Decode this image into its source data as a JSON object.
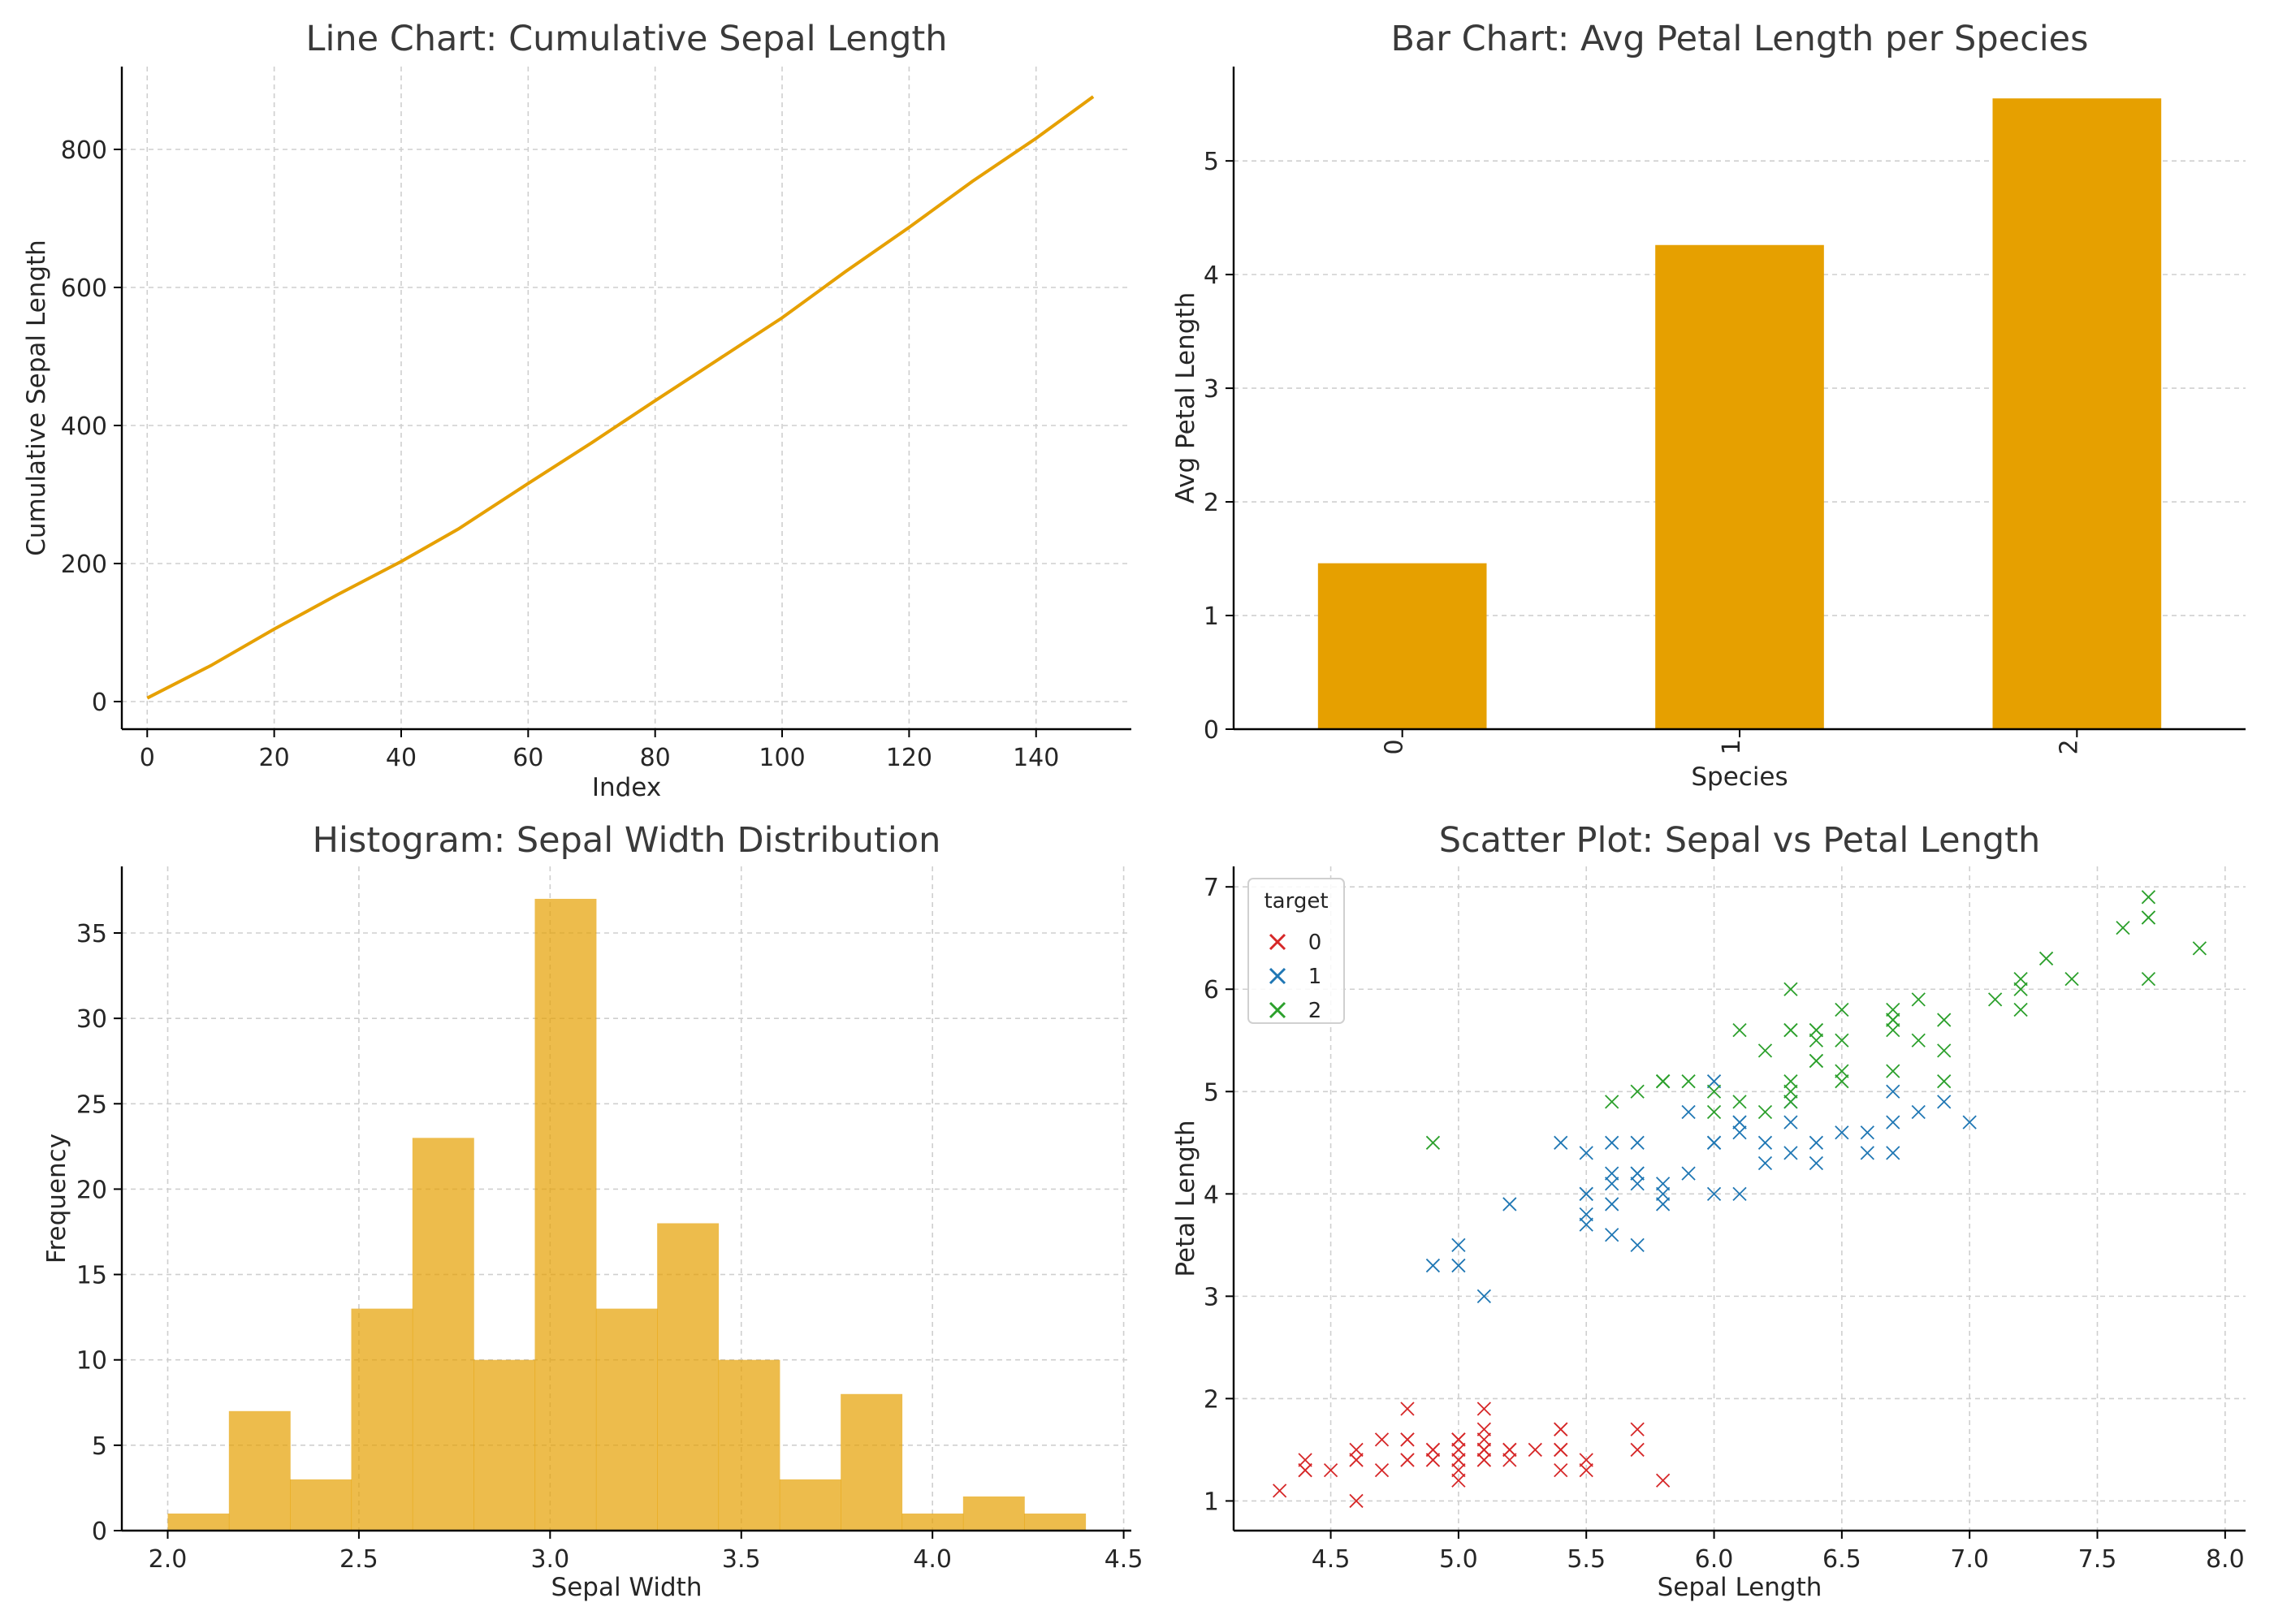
{
  "chart_data": [
    {
      "type": "line",
      "title": "Line Chart: Cumulative Sepal Length",
      "xlabel": "Index",
      "ylabel": "Cumulative Sepal Length",
      "xlim": [
        -4,
        155
      ],
      "ylim": [
        -40,
        920
      ],
      "xticks": [
        0,
        20,
        40,
        60,
        80,
        100,
        120,
        140
      ],
      "yticks": [
        0,
        200,
        400,
        600,
        800
      ],
      "grid": true,
      "color": "#E6A000",
      "series": [
        {
          "x": [
            0,
            10,
            20,
            30,
            40,
            49,
            60,
            70,
            80,
            90,
            100,
            110,
            120,
            130,
            140,
            149
          ],
          "values": [
            5.1,
            52,
            105,
            155,
            203,
            250,
            316,
            375,
            436,
            496,
            556,
            623,
            687,
            754,
            816,
            876.5
          ]
        }
      ]
    },
    {
      "type": "bar",
      "title": "Bar Chart: Avg Petal Length per Species",
      "xlabel": "Species",
      "ylabel": "Avg Petal Length",
      "categories": [
        "0",
        "1",
        "2"
      ],
      "values": [
        1.46,
        4.26,
        5.55
      ],
      "ylim": [
        0,
        5.83
      ],
      "yticks": [
        0,
        1,
        2,
        3,
        4,
        5
      ],
      "grid": true,
      "color": "#E6A000"
    },
    {
      "type": "bar",
      "title": "Histogram: Sepal Width Distribution",
      "xlabel": "Sepal Width",
      "ylabel": "Frequency",
      "bin_edges": [
        2.0,
        2.16,
        2.32,
        2.48,
        2.64,
        2.8,
        2.96,
        3.12,
        3.28,
        3.44,
        3.6,
        3.76,
        3.92,
        4.08,
        4.24,
        4.4
      ],
      "values": [
        1,
        7,
        3,
        13,
        23,
        10,
        37,
        13,
        18,
        10,
        3,
        8,
        1,
        2,
        1
      ],
      "xlim": [
        1.88,
        4.52
      ],
      "ylim": [
        0,
        38.9
      ],
      "xticks": [
        2.0,
        2.5,
        3.0,
        3.5,
        4.0,
        4.5
      ],
      "yticks": [
        0,
        5,
        10,
        15,
        20,
        25,
        30,
        35
      ],
      "grid": true,
      "color": "#E6A000"
    },
    {
      "type": "scatter",
      "title": "Scatter Plot: Sepal vs Petal Length",
      "xlabel": "Sepal Length",
      "ylabel": "Petal Length",
      "xlim": [
        4.12,
        8.08
      ],
      "ylim": [
        0.71,
        7.2
      ],
      "xticks": [
        4.5,
        5.0,
        5.5,
        6.0,
        6.5,
        7.0,
        7.5,
        8.0
      ],
      "yticks": [
        1,
        2,
        3,
        4,
        5,
        6,
        7
      ],
      "grid": true,
      "legend": {
        "title": "target",
        "position": "top-left"
      },
      "series": [
        {
          "name": "0",
          "color": "#d62728",
          "points": [
            [
              5.1,
              1.4
            ],
            [
              4.9,
              1.4
            ],
            [
              4.7,
              1.3
            ],
            [
              4.6,
              1.5
            ],
            [
              5.0,
              1.4
            ],
            [
              5.4,
              1.7
            ],
            [
              4.6,
              1.4
            ],
            [
              5.0,
              1.5
            ],
            [
              4.4,
              1.4
            ],
            [
              4.9,
              1.5
            ],
            [
              5.4,
              1.5
            ],
            [
              4.8,
              1.6
            ],
            [
              4.8,
              1.4
            ],
            [
              4.3,
              1.1
            ],
            [
              5.8,
              1.2
            ],
            [
              5.7,
              1.5
            ],
            [
              5.4,
              1.3
            ],
            [
              5.1,
              1.4
            ],
            [
              5.7,
              1.7
            ],
            [
              5.1,
              1.5
            ],
            [
              5.4,
              1.7
            ],
            [
              5.1,
              1.5
            ],
            [
              4.6,
              1.0
            ],
            [
              5.1,
              1.7
            ],
            [
              4.8,
              1.9
            ],
            [
              5.0,
              1.6
            ],
            [
              5.0,
              1.6
            ],
            [
              5.2,
              1.5
            ],
            [
              5.2,
              1.4
            ],
            [
              4.7,
              1.6
            ],
            [
              4.8,
              1.6
            ],
            [
              5.4,
              1.5
            ],
            [
              5.2,
              1.5
            ],
            [
              5.5,
              1.4
            ],
            [
              4.9,
              1.5
            ],
            [
              5.0,
              1.2
            ],
            [
              5.5,
              1.3
            ],
            [
              4.9,
              1.4
            ],
            [
              4.4,
              1.3
            ],
            [
              5.1,
              1.5
            ],
            [
              5.0,
              1.3
            ],
            [
              4.5,
              1.3
            ],
            [
              4.4,
              1.3
            ],
            [
              5.0,
              1.6
            ],
            [
              5.1,
              1.9
            ],
            [
              4.8,
              1.4
            ],
            [
              5.1,
              1.6
            ],
            [
              4.6,
              1.4
            ],
            [
              5.3,
              1.5
            ],
            [
              5.0,
              1.4
            ]
          ]
        },
        {
          "name": "1",
          "color": "#1f77b4",
          "points": [
            [
              7.0,
              4.7
            ],
            [
              6.4,
              4.5
            ],
            [
              6.9,
              4.9
            ],
            [
              5.5,
              4.0
            ],
            [
              6.5,
              4.6
            ],
            [
              5.7,
              4.5
            ],
            [
              6.3,
              4.7
            ],
            [
              4.9,
              3.3
            ],
            [
              6.6,
              4.6
            ],
            [
              5.2,
              3.9
            ],
            [
              5.0,
              3.5
            ],
            [
              5.9,
              4.2
            ],
            [
              6.0,
              4.0
            ],
            [
              6.1,
              4.7
            ],
            [
              5.6,
              3.6
            ],
            [
              6.7,
              4.4
            ],
            [
              5.6,
              4.5
            ],
            [
              5.8,
              4.1
            ],
            [
              6.2,
              4.5
            ],
            [
              5.6,
              3.9
            ],
            [
              5.9,
              4.8
            ],
            [
              6.1,
              4.0
            ],
            [
              6.3,
              4.9
            ],
            [
              6.1,
              4.7
            ],
            [
              6.4,
              4.3
            ],
            [
              6.6,
              4.4
            ],
            [
              6.8,
              4.8
            ],
            [
              6.7,
              5.0
            ],
            [
              6.0,
              4.5
            ],
            [
              5.7,
              3.5
            ],
            [
              5.5,
              3.8
            ],
            [
              5.5,
              3.7
            ],
            [
              5.8,
              3.9
            ],
            [
              6.0,
              5.1
            ],
            [
              5.4,
              4.5
            ],
            [
              6.0,
              4.5
            ],
            [
              6.7,
              4.7
            ],
            [
              6.3,
              4.4
            ],
            [
              5.6,
              4.1
            ],
            [
              5.5,
              4.0
            ],
            [
              5.5,
              4.4
            ],
            [
              6.1,
              4.6
            ],
            [
              5.8,
              4.0
            ],
            [
              5.0,
              3.3
            ],
            [
              5.6,
              4.2
            ],
            [
              5.7,
              4.2
            ],
            [
              5.7,
              4.2
            ],
            [
              6.2,
              4.3
            ],
            [
              5.1,
              3.0
            ],
            [
              5.7,
              4.1
            ]
          ]
        },
        {
          "name": "2",
          "color": "#2ca02c",
          "points": [
            [
              6.3,
              6.0
            ],
            [
              5.8,
              5.1
            ],
            [
              7.1,
              5.9
            ],
            [
              6.3,
              5.6
            ],
            [
              6.5,
              5.8
            ],
            [
              7.6,
              6.6
            ],
            [
              4.9,
              4.5
            ],
            [
              7.3,
              6.3
            ],
            [
              6.7,
              5.8
            ],
            [
              7.2,
              6.1
            ],
            [
              6.5,
              5.1
            ],
            [
              6.4,
              5.3
            ],
            [
              6.8,
              5.5
            ],
            [
              5.7,
              5.0
            ],
            [
              5.8,
              5.1
            ],
            [
              6.4,
              5.3
            ],
            [
              6.5,
              5.5
            ],
            [
              7.7,
              6.7
            ],
            [
              7.7,
              6.9
            ],
            [
              6.0,
              5.0
            ],
            [
              6.9,
              5.7
            ],
            [
              5.6,
              4.9
            ],
            [
              7.7,
              6.7
            ],
            [
              6.3,
              4.9
            ],
            [
              6.7,
              5.7
            ],
            [
              7.2,
              6.0
            ],
            [
              6.2,
              4.8
            ],
            [
              6.1,
              4.9
            ],
            [
              6.4,
              5.6
            ],
            [
              7.2,
              5.8
            ],
            [
              7.4,
              6.1
            ],
            [
              7.9,
              6.4
            ],
            [
              6.4,
              5.6
            ],
            [
              6.3,
              5.1
            ],
            [
              6.1,
              5.6
            ],
            [
              7.7,
              6.1
            ],
            [
              6.3,
              5.6
            ],
            [
              6.4,
              5.5
            ],
            [
              6.0,
              4.8
            ],
            [
              6.9,
              5.4
            ],
            [
              6.7,
              5.6
            ],
            [
              6.9,
              5.1
            ],
            [
              5.8,
              5.1
            ],
            [
              6.8,
              5.9
            ],
            [
              6.7,
              5.7
            ],
            [
              6.7,
              5.2
            ],
            [
              6.3,
              5.0
            ],
            [
              6.5,
              5.2
            ],
            [
              6.2,
              5.4
            ],
            [
              5.9,
              5.1
            ]
          ]
        }
      ]
    }
  ]
}
